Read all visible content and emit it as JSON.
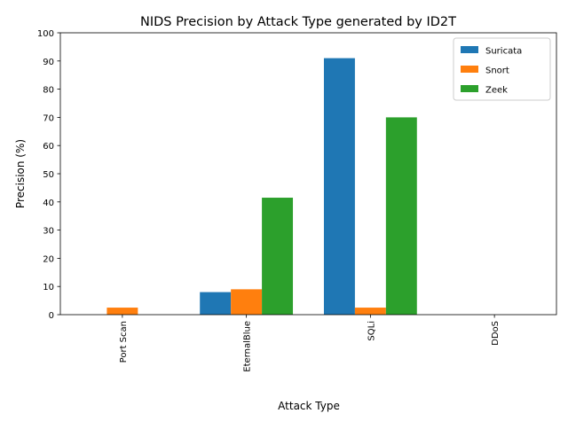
{
  "chart_data": {
    "type": "bar",
    "title": "NIDS Precision by Attack Type generated by ID2T",
    "xlabel": "Attack Type",
    "ylabel": "Precision (%)",
    "categories": [
      "Port Scan",
      "EternalBlue",
      "SQLi",
      "DDoS"
    ],
    "series": [
      {
        "name": "Suricata",
        "color": "#1f77b4",
        "values": [
          0,
          8,
          91,
          0
        ]
      },
      {
        "name": "Snort",
        "color": "#ff7f0e",
        "values": [
          2.5,
          9,
          2.5,
          0
        ]
      },
      {
        "name": "Zeek",
        "color": "#2ca02c",
        "values": [
          0,
          41.5,
          70,
          0
        ]
      }
    ],
    "ylim": [
      0,
      100
    ],
    "yticks": [
      0,
      10,
      20,
      30,
      40,
      50,
      60,
      70,
      80,
      90,
      100
    ],
    "grid": false,
    "legend_position": "top-right"
  }
}
